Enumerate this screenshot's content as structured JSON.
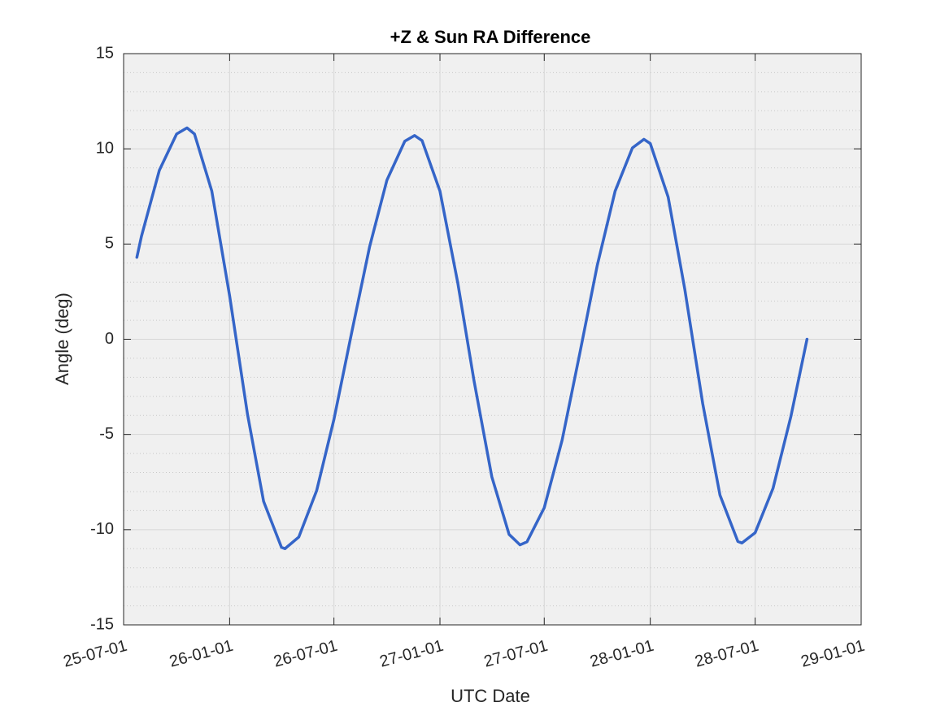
{
  "chart_data": {
    "type": "line",
    "title": "+Z & Sun RA Difference",
    "x_label": "UTC Date",
    "y_label": "Angle (deg)",
    "date_format": "yy-mm-dd",
    "x": [
      "25-07-24",
      "25-08-01",
      "25-09-01",
      "25-10-01",
      "25-10-19",
      "25-11-01",
      "25-12-01",
      "26-01-01",
      "26-02-01",
      "26-03-01",
      "26-04-01",
      "26-04-07",
      "26-05-01",
      "26-06-01",
      "26-07-01",
      "26-08-01",
      "26-09-01",
      "26-10-01",
      "26-11-01",
      "26-11-18",
      "26-12-01",
      "27-01-01",
      "27-02-01",
      "27-03-01",
      "27-04-01",
      "27-05-01",
      "27-05-20",
      "27-06-01",
      "27-07-01",
      "27-08-01",
      "27-09-01",
      "27-10-01",
      "27-11-01",
      "27-12-01",
      "27-12-21",
      "28-01-01",
      "28-02-01",
      "28-03-01",
      "28-04-01",
      "28-05-01",
      "28-06-01",
      "28-06-08",
      "28-07-01",
      "28-08-01",
      "28-09-01",
      "28-09-29"
    ],
    "series": [
      {
        "name": "+Z & Sun RA Difference",
        "color": "#3565c8",
        "values": [
          4.3,
          5.41,
          8.87,
          10.78,
          11.1,
          10.78,
          7.79,
          2.28,
          -3.94,
          -8.52,
          -10.93,
          -11,
          -10.39,
          -7.95,
          -4.21,
          0.38,
          4.87,
          8.36,
          10.4,
          10.7,
          10.43,
          7.78,
          2.95,
          -2.16,
          -7.22,
          -10.25,
          -10.8,
          -10.64,
          -8.85,
          -5.3,
          -0.69,
          3.88,
          7.78,
          10.05,
          10.5,
          10.28,
          7.47,
          2.61,
          -3.38,
          -8.19,
          -10.62,
          -10.7,
          -10.16,
          -7.83,
          -4.06,
          0
        ]
      }
    ],
    "xlim": [
      "25-07-01",
      "29-01-01"
    ],
    "xticks": [
      "25-07-01",
      "26-01-01",
      "26-07-01",
      "27-01-01",
      "27-07-01",
      "28-01-01",
      "28-07-01",
      "29-01-01"
    ],
    "ylim": [
      -15,
      15
    ],
    "yticks": [
      -15,
      -10,
      -5,
      0,
      5,
      10,
      15
    ],
    "grid": true,
    "minor_grid": true
  }
}
